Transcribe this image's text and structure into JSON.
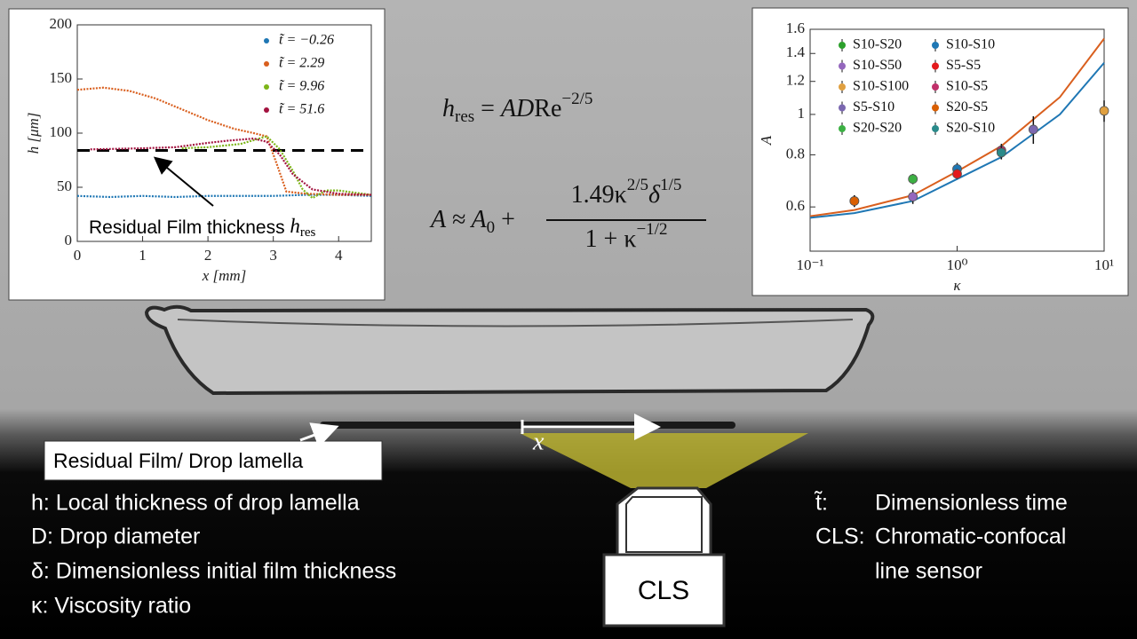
{
  "chart_data": [
    {
      "type": "line",
      "xlabel": "x [mm]",
      "ylabel": "h [μm]",
      "xlim": [
        0,
        4.5
      ],
      "ylim": [
        0,
        200
      ],
      "xticks": [
        0,
        1,
        2,
        3,
        4
      ],
      "yticks": [
        0,
        50,
        100,
        150,
        200
      ],
      "legend": "upper right",
      "series": [
        {
          "name": "t̃ = −0.26",
          "color": "#1f77b4",
          "x": [
            0,
            0.5,
            1,
            1.5,
            2,
            2.5,
            3,
            3.5,
            4,
            4.5
          ],
          "values": [
            42,
            41,
            42,
            41,
            42,
            42,
            42,
            43,
            43,
            42
          ]
        },
        {
          "name": "t̃ = 2.29",
          "color": "#d95f1e",
          "x": [
            0,
            0.4,
            0.8,
            1.2,
            1.6,
            2,
            2.4,
            2.7,
            2.9,
            3.05,
            3.2,
            3.5,
            4,
            4.5
          ],
          "values": [
            140,
            142,
            139,
            132,
            122,
            112,
            104,
            100,
            97,
            72,
            46,
            44,
            43,
            43
          ]
        },
        {
          "name": "t̃ = 9.96",
          "color": "#7cb518",
          "x": [
            1.6,
            2,
            2.5,
            2.9,
            3.1,
            3.3,
            3.45,
            3.6,
            3.8,
            4,
            4.5
          ],
          "values": [
            86,
            87,
            90,
            97,
            85,
            65,
            48,
            40,
            47,
            47,
            43
          ]
        },
        {
          "name": "t̃ = 51.6",
          "color": "#a3123f",
          "x": [
            0.2,
            1,
            1.5,
            2,
            2.3,
            2.7,
            2.9,
            3.1,
            3.3,
            3.6,
            4,
            4.5
          ],
          "values": [
            85,
            86,
            87,
            91,
            93,
            95,
            92,
            80,
            62,
            48,
            44,
            43
          ]
        }
      ],
      "reference_line": {
        "value": 84,
        "color": "#000000"
      },
      "annotation": [
        "Residual Film thickness ",
        "h",
        "res"
      ]
    },
    {
      "type": "scatter",
      "xlabel": "κ",
      "ylabel": "A",
      "xscale": "log",
      "yscale": "log",
      "xlim": [
        0.1,
        10
      ],
      "ylim": [
        0.47,
        1.6
      ],
      "xticks": [
        {
          "value": 0.1,
          "label": "10⁻¹"
        },
        {
          "value": 1,
          "label": "10⁰"
        },
        {
          "value": 10,
          "label": "10¹"
        }
      ],
      "yticks": [
        0.6,
        0.8,
        1,
        1.2,
        1.4,
        1.6
      ],
      "legend": "upper left",
      "series": [
        {
          "name": "S10-S20",
          "color": "#2ca02c",
          "x": [
            0.2
          ],
          "values": [
            0.62
          ],
          "errors": [
            0.02
          ]
        },
        {
          "name": "S10-S50",
          "color": "#9467bd",
          "x": [
            0.5
          ],
          "values": [
            0.635
          ],
          "errors": [
            0.025
          ]
        },
        {
          "name": "S10-S100",
          "color": "#e0a040",
          "x": [
            10
          ],
          "values": [
            1.02
          ],
          "errors": [
            0.06
          ]
        },
        {
          "name": "S5-S10",
          "color": "#7b68b0",
          "x": [
            3.3
          ],
          "values": [
            0.92
          ],
          "errors": [
            0.07
          ]
        },
        {
          "name": "S20-S20",
          "color": "#3cb043",
          "x": [
            0.5
          ],
          "values": [
            0.7
          ],
          "errors": [
            0.02
          ]
        },
        {
          "name": "S10-S10",
          "color": "#1f77b4",
          "x": [
            1
          ],
          "values": [
            0.74
          ],
          "errors": [
            0.025
          ]
        },
        {
          "name": "S5-S5",
          "color": "#e41a1c",
          "x": [
            1
          ],
          "values": [
            0.72
          ],
          "errors": [
            0.02
          ]
        },
        {
          "name": "S10-S5",
          "color": "#c0306a",
          "x": [
            2
          ],
          "values": [
            0.82
          ],
          "errors": [
            0.03
          ]
        },
        {
          "name": "S20-S5",
          "color": "#d95f02",
          "x": [
            0.2
          ],
          "values": [
            0.62
          ],
          "errors": [
            0.02
          ]
        },
        {
          "name": "S20-S10",
          "color": "#2a8a8a",
          "x": [
            2
          ],
          "values": [
            0.81
          ],
          "errors": [
            0.03
          ]
        }
      ],
      "curves": [
        {
          "color": "#d95f1e",
          "x": [
            0.1,
            0.2,
            0.5,
            1,
            2,
            5,
            10
          ],
          "values": [
            0.57,
            0.59,
            0.64,
            0.73,
            0.84,
            1.1,
            1.52
          ]
        },
        {
          "color": "#1f77b4",
          "x": [
            0.1,
            0.2,
            0.5,
            1,
            2,
            5,
            10
          ],
          "values": [
            0.565,
            0.58,
            0.62,
            0.7,
            0.79,
            1.0,
            1.33
          ]
        }
      ]
    }
  ],
  "formula_1": [
    "h",
    "res",
    " = ",
    "AD",
    "Re",
    "−2/5"
  ],
  "formula_2": {
    "lhs": [
      "A ≈ A",
      "0",
      " +"
    ],
    "numerator": [
      "1.49κ",
      "2/5",
      "δ",
      "1/5"
    ],
    "denominator": [
      "1 + κ",
      "−1/2"
    ]
  },
  "x_arrow_label": "x",
  "film_label": "Residual Film/ Drop lamella",
  "sensor_label": "CLS",
  "definitions_left": [
    "h: Local thickness of drop lamella",
    "D: Drop diameter",
    "δ: Dimensionless initial film thickness",
    "κ: Viscosity ratio"
  ],
  "definitions_right": [
    {
      "symbol": "t̃:",
      "text": [
        "Dimensionless time"
      ]
    },
    {
      "symbol": "CLS:",
      "text": [
        "Chromatic-confocal",
        "line sensor"
      ]
    }
  ]
}
